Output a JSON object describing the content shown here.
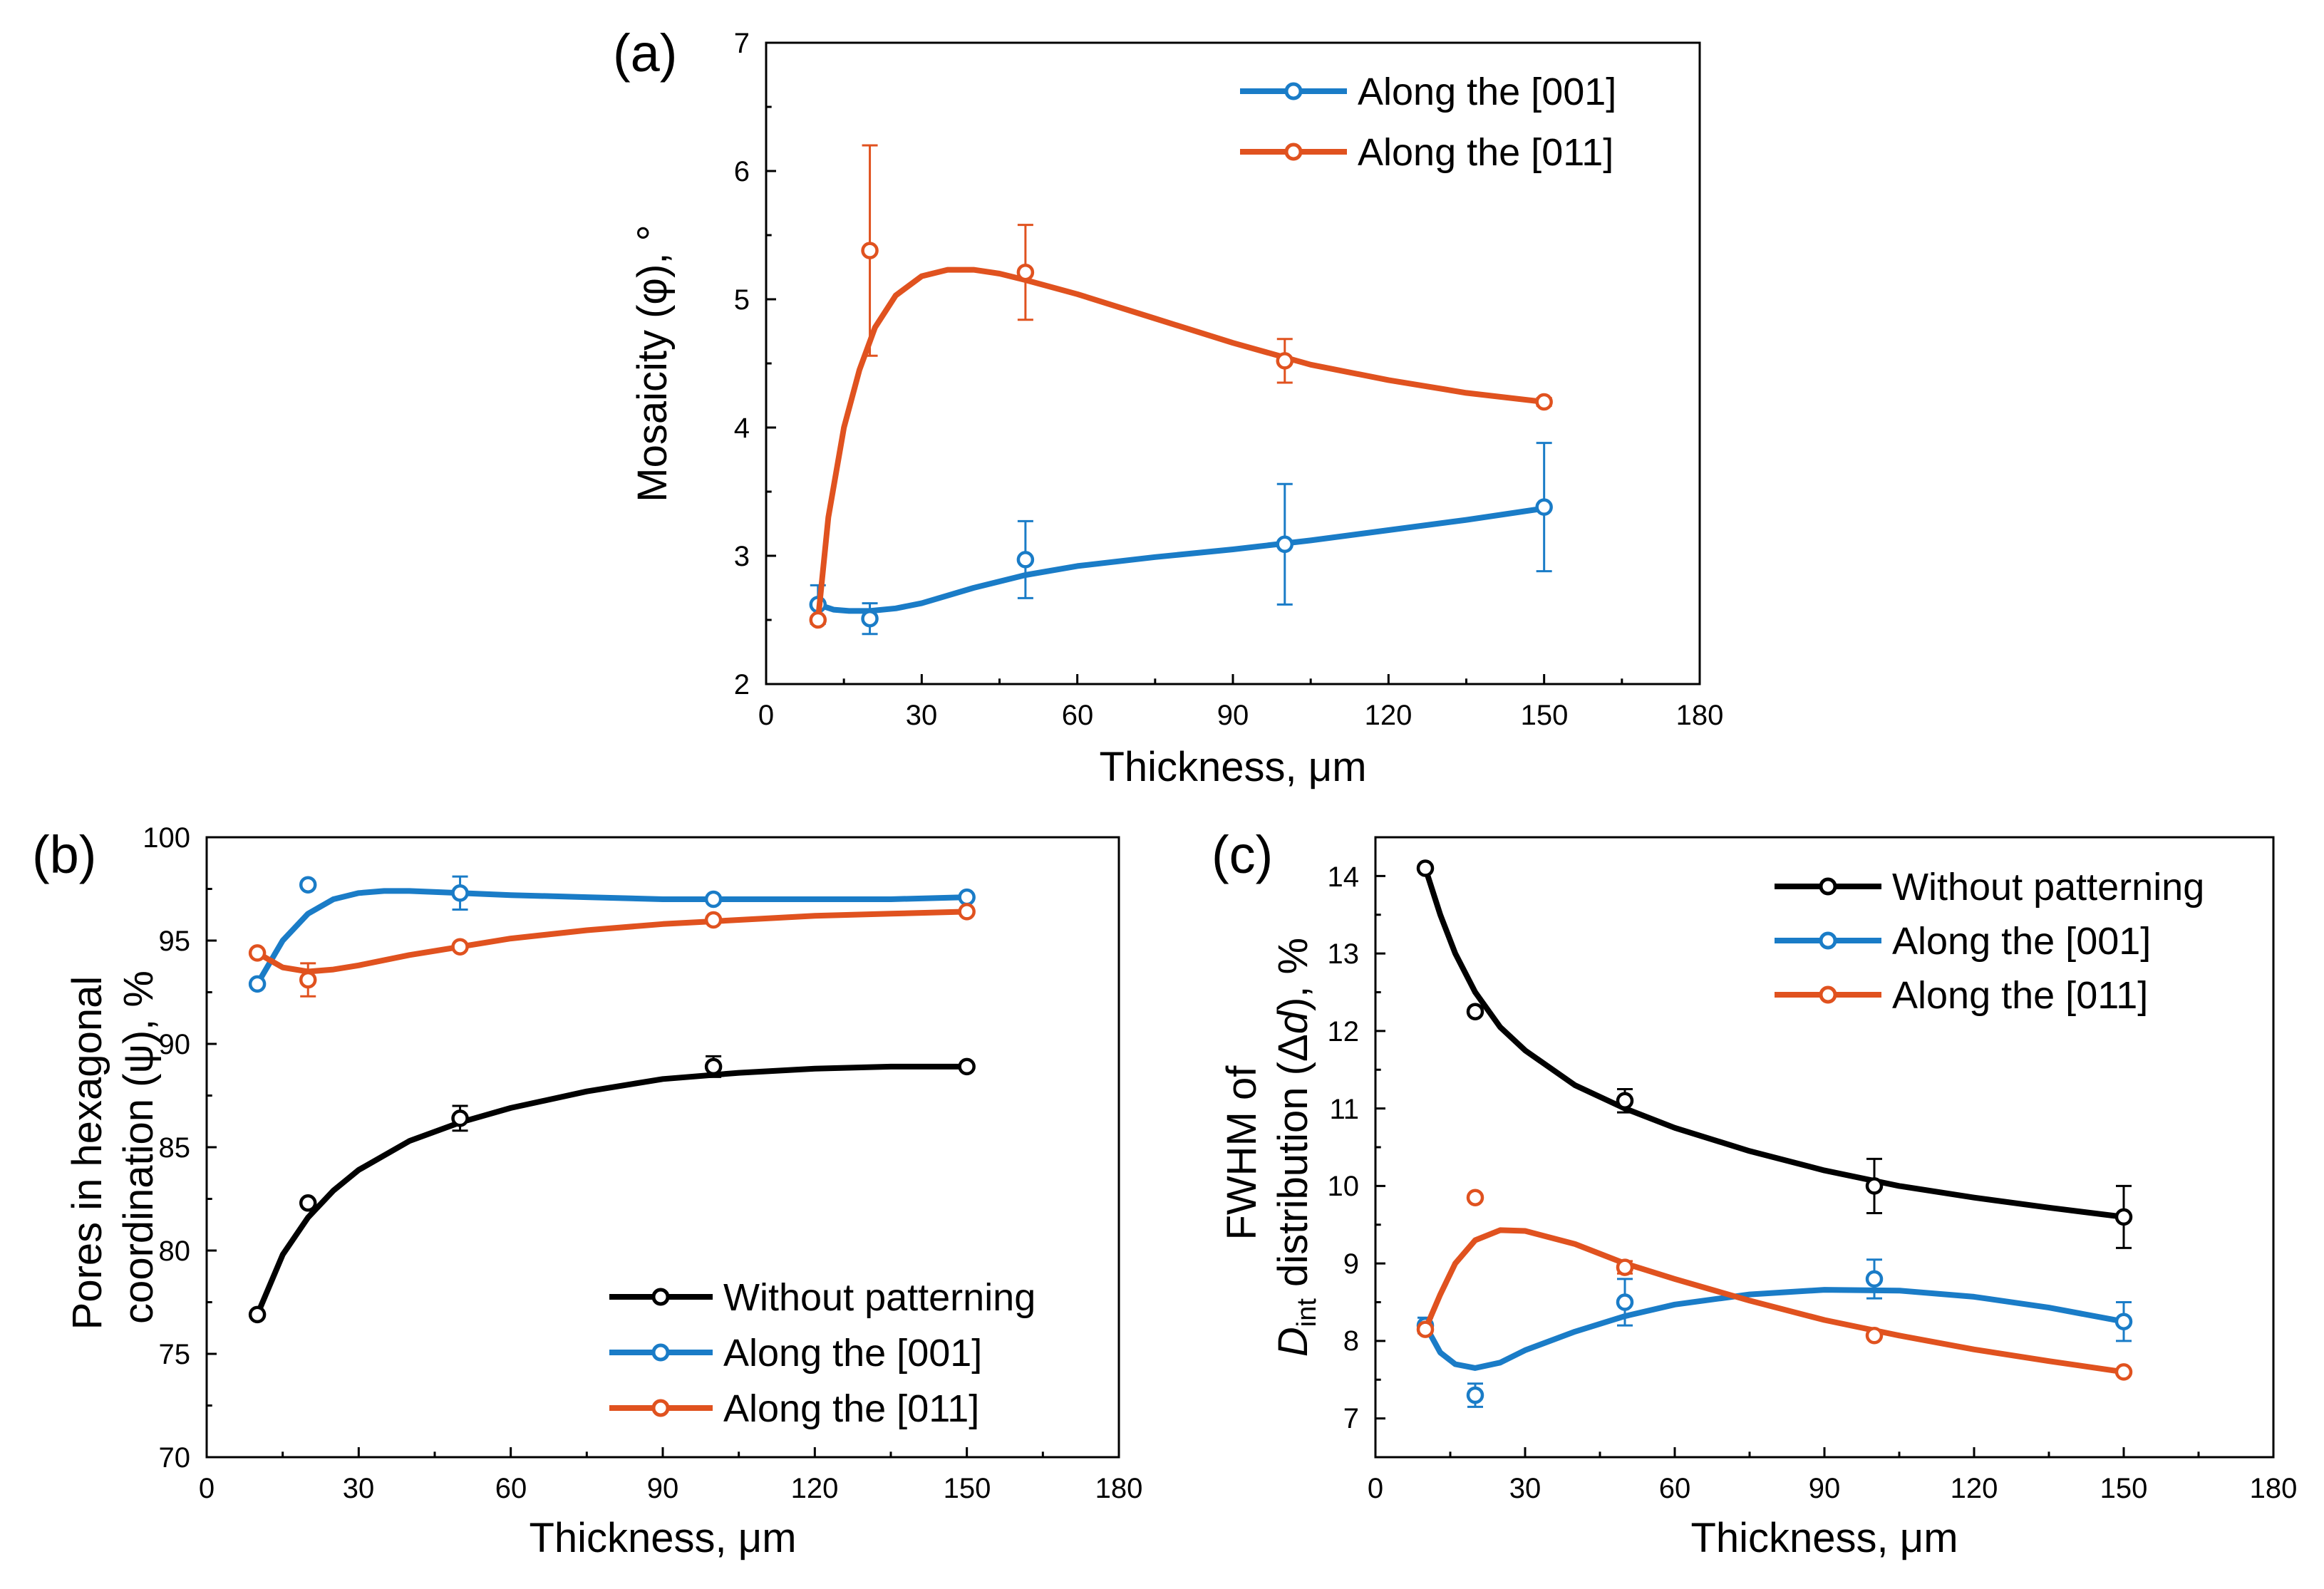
{
  "colors": {
    "black": "#000000",
    "blue": "#1a7cc7",
    "orange": "#e0521f"
  },
  "chart_data": [
    {
      "panel_label": "(a)",
      "type": "line",
      "title": "",
      "xlabel": "Thickness, μm",
      "ylabel": "Mosaicity (φ), °",
      "xlim": [
        0,
        180
      ],
      "ylim": [
        2,
        7
      ],
      "xticks": [
        "0",
        "30",
        "60",
        "90",
        "120",
        "150",
        "180"
      ],
      "yticks": [
        "2",
        "3",
        "4",
        "5",
        "6",
        "7"
      ],
      "legend_position": "top-right",
      "series": [
        {
          "name": "Along the [001]",
          "color": "blue",
          "x": [
            10,
            20,
            50,
            100,
            150
          ],
          "y": [
            2.62,
            2.51,
            2.97,
            3.09,
            3.38
          ],
          "err": [
            0.15,
            0.12,
            0.3,
            0.47,
            0.5
          ],
          "fit_x": [
            10,
            13,
            16,
            20,
            25,
            30,
            40,
            50,
            60,
            75,
            90,
            105,
            120,
            135,
            150
          ],
          "fit_y": [
            2.62,
            2.58,
            2.57,
            2.57,
            2.59,
            2.63,
            2.75,
            2.85,
            2.92,
            2.99,
            3.05,
            3.12,
            3.2,
            3.28,
            3.37
          ]
        },
        {
          "name": "Along the [011]",
          "color": "orange",
          "x": [
            10,
            20,
            50,
            100,
            150
          ],
          "y": [
            2.5,
            5.38,
            5.21,
            4.52,
            4.2
          ],
          "err": [
            0,
            0.82,
            0.37,
            0.17,
            0.03
          ],
          "fit_x": [
            10,
            12,
            15,
            18,
            21,
            25,
            30,
            35,
            40,
            45,
            50,
            60,
            75,
            90,
            105,
            120,
            135,
            150
          ],
          "fit_y": [
            2.5,
            3.3,
            4.0,
            4.45,
            4.78,
            5.03,
            5.18,
            5.23,
            5.23,
            5.2,
            5.15,
            5.04,
            4.85,
            4.66,
            4.49,
            4.37,
            4.27,
            4.2
          ]
        }
      ]
    },
    {
      "panel_label": "(b)",
      "type": "line",
      "title": "",
      "xlabel": "Thickness, μm",
      "ylabel_lines": [
        "Pores in hexagonal",
        "coordination (ψ), %"
      ],
      "xlim": [
        0,
        180
      ],
      "ylim": [
        70,
        100
      ],
      "xticks": [
        "0",
        "30",
        "60",
        "90",
        "120",
        "150",
        "180"
      ],
      "yticks": [
        "70",
        "75",
        "80",
        "85",
        "90",
        "95",
        "100"
      ],
      "legend_position": "bottom-right",
      "series": [
        {
          "name": "Without patterning",
          "color": "black",
          "x": [
            10,
            20,
            50,
            100,
            150
          ],
          "y": [
            76.9,
            82.3,
            86.4,
            88.9,
            88.9
          ],
          "err": [
            0,
            0,
            0.6,
            0.5,
            0
          ],
          "fit_x": [
            10,
            15,
            20,
            25,
            30,
            40,
            50,
            60,
            75,
            90,
            105,
            120,
            135,
            150
          ],
          "fit_y": [
            76.9,
            79.8,
            81.6,
            82.9,
            83.9,
            85.3,
            86.2,
            86.9,
            87.7,
            88.3,
            88.6,
            88.8,
            88.9,
            88.9
          ]
        },
        {
          "name": "Along the [001]",
          "color": "blue",
          "x": [
            10,
            20,
            50,
            100,
            150
          ],
          "y": [
            92.9,
            97.7,
            97.3,
            97.0,
            97.1
          ],
          "err": [
            0,
            0,
            0.8,
            0,
            0
          ],
          "fit_x": [
            10,
            15,
            20,
            25,
            30,
            35,
            40,
            50,
            60,
            75,
            90,
            105,
            120,
            135,
            150
          ],
          "fit_y": [
            92.9,
            95.0,
            96.3,
            97.0,
            97.3,
            97.4,
            97.4,
            97.3,
            97.2,
            97.1,
            97.0,
            97.0,
            97.0,
            97.0,
            97.1
          ]
        },
        {
          "name": "Along the [011]",
          "color": "orange",
          "x": [
            10,
            20,
            50,
            100,
            150
          ],
          "y": [
            94.4,
            93.1,
            94.7,
            96.0,
            96.4
          ],
          "err": [
            0,
            0.8,
            0,
            0,
            0
          ],
          "fit_x": [
            10,
            15,
            20,
            25,
            30,
            40,
            50,
            60,
            75,
            90,
            105,
            120,
            135,
            150
          ],
          "fit_y": [
            94.4,
            93.7,
            93.5,
            93.6,
            93.8,
            94.3,
            94.7,
            95.1,
            95.5,
            95.8,
            96.0,
            96.2,
            96.3,
            96.4
          ]
        }
      ]
    },
    {
      "panel_label": "(c)",
      "type": "line",
      "title": "",
      "xlabel": "Thickness, μm",
      "ylabel_line1": "FWHM of",
      "ylabel_line2_var": "D",
      "ylabel_line2_sub": "int",
      "ylabel_line2_mid": " distribution (",
      "ylabel_line2_delta": "Δ",
      "ylabel_line2_d": "d",
      "ylabel_line2_end": "), %",
      "xlim": [
        0,
        180
      ],
      "ylim": [
        6.5,
        14.5
      ],
      "xticks": [
        "0",
        "30",
        "60",
        "90",
        "120",
        "150",
        "180"
      ],
      "yticks": [
        "7",
        "8",
        "9",
        "10",
        "11",
        "12",
        "13",
        "14"
      ],
      "legend_position": "top-right",
      "series": [
        {
          "name": "Without patterning",
          "color": "black",
          "x": [
            10,
            20,
            50,
            100,
            150
          ],
          "y": [
            14.1,
            12.25,
            11.1,
            10.0,
            9.6
          ],
          "err": [
            0,
            0,
            0.15,
            0.35,
            0.4
          ],
          "fit_x": [
            10,
            13,
            16,
            20,
            25,
            30,
            40,
            50,
            60,
            75,
            90,
            105,
            120,
            135,
            150
          ],
          "fit_y": [
            14.1,
            13.5,
            13.0,
            12.5,
            12.05,
            11.75,
            11.3,
            11.0,
            10.75,
            10.45,
            10.2,
            10.0,
            9.85,
            9.72,
            9.6
          ]
        },
        {
          "name": "Along the [001]",
          "color": "blue",
          "x": [
            10,
            20,
            50,
            100,
            150
          ],
          "y": [
            8.2,
            7.3,
            8.5,
            8.8,
            8.25
          ],
          "err": [
            0.1,
            0.15,
            0.3,
            0.25,
            0.25
          ],
          "fit_x": [
            10,
            13,
            16,
            20,
            25,
            30,
            40,
            50,
            60,
            75,
            90,
            105,
            120,
            135,
            150
          ],
          "fit_y": [
            8.2,
            7.85,
            7.7,
            7.65,
            7.72,
            7.88,
            8.12,
            8.32,
            8.47,
            8.6,
            8.66,
            8.65,
            8.57,
            8.43,
            8.25
          ]
        },
        {
          "name": "Along the [011]",
          "color": "orange",
          "x": [
            10,
            20,
            50,
            100,
            150
          ],
          "y": [
            8.15,
            9.85,
            8.95,
            8.07,
            7.6
          ],
          "err": [
            0,
            0,
            0.08,
            0,
            0
          ],
          "fit_x": [
            10,
            13,
            16,
            20,
            25,
            30,
            40,
            50,
            60,
            75,
            90,
            105,
            120,
            135,
            150
          ],
          "fit_y": [
            8.15,
            8.6,
            9.0,
            9.3,
            9.43,
            9.42,
            9.25,
            9.0,
            8.8,
            8.52,
            8.27,
            8.07,
            7.89,
            7.74,
            7.6
          ]
        }
      ]
    }
  ]
}
